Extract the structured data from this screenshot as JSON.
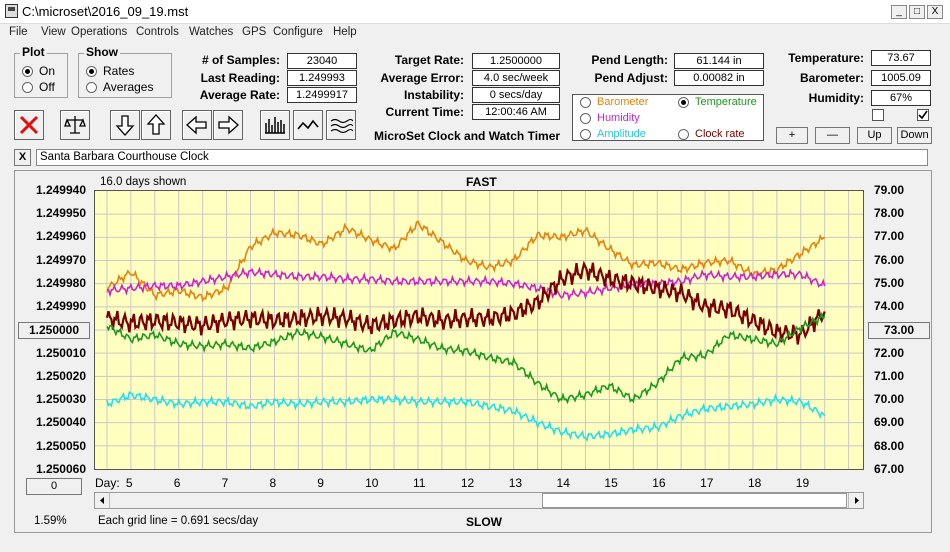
{
  "window": {
    "title": "C:\\microset\\2016_09_19.mst",
    "buttons": [
      "_",
      "□",
      "X"
    ]
  },
  "menu": [
    "File",
    "View",
    "Operations",
    "Controls",
    "Watches",
    "GPS",
    "Configure",
    "Help"
  ],
  "plot_group": {
    "title": "Plot",
    "options": [
      {
        "label": "On",
        "selected": true
      },
      {
        "label": "Off",
        "selected": false
      }
    ]
  },
  "show_group": {
    "title": "Show",
    "options": [
      {
        "label": "Rates",
        "selected": true
      },
      {
        "label": "Averages",
        "selected": false
      }
    ]
  },
  "stats": {
    "samples_label": "# of Samples:",
    "samples": "23040",
    "last_label": "Last Reading:",
    "last": "1.249993",
    "avg_label": "Average Rate:",
    "avg": "1.2499917"
  },
  "rates": {
    "target_label": "Target Rate:",
    "target": "1.2500000",
    "err_label": "Average Error:",
    "err": "4.0 sec/week",
    "inst_label": "Instability:",
    "inst": "0 secs/day",
    "time_label": "Current Time:",
    "time": "12:00:46 AM"
  },
  "app_caption": "MicroSet Clock and Watch Timer",
  "pend": {
    "len_label": "Pend Length:",
    "len": "61.144 in",
    "adj_label": "Pend Adjust:",
    "adj": "0.00082 in"
  },
  "env": {
    "temp_label": "Temperature:",
    "temp": "73.67",
    "baro_label": "Barometer:",
    "baro": "1005.09",
    "hum_label": "Humidity:",
    "hum": "67%"
  },
  "legend": [
    {
      "label": "Barometer",
      "color": "#e8820a",
      "selected": false
    },
    {
      "label": "Temperature",
      "color": "#1a9a1a",
      "selected": true
    },
    {
      "label": "Humidity",
      "color": "#d020d0",
      "selected": false
    },
    {
      "label": "Clock rate",
      "color": "#7a0000",
      "selected": false
    },
    {
      "label": "Amplitude",
      "color": "#20d0e0",
      "selected": false
    }
  ],
  "scale_buttons": [
    "+",
    "—",
    "Up",
    "Down"
  ],
  "clock_name": "Santa Barbara Courthouse Clock",
  "close_glyph": "X",
  "chart_header": {
    "days_shown": "16.0 days shown",
    "fast": "FAST",
    "slow": "SLOW"
  },
  "chart_footer": {
    "left_button": "0",
    "percent": "1.59%",
    "grid_note": "Each grid line = 0.691 secs/day",
    "day_label": "Day:"
  },
  "chart_data": {
    "type": "line",
    "title": "",
    "x": [
      4.5,
      5,
      5.5,
      6,
      6.5,
      7,
      7.5,
      8,
      8.5,
      9,
      9.5,
      10,
      10.5,
      11,
      11.5,
      12,
      12.5,
      13,
      13.5,
      14,
      14.5,
      15,
      15.5,
      16,
      16.5,
      17,
      17.5,
      18,
      18.5,
      19,
      19.5
    ],
    "x_ticks": [
      "5",
      "6",
      "7",
      "8",
      "9",
      "10",
      "11",
      "12",
      "13",
      "14",
      "15",
      "16",
      "17",
      "18",
      "19"
    ],
    "xlim": [
      4.25,
      20.3
    ],
    "left_axis": {
      "ticks": [
        "1.249940",
        "1.249950",
        "1.249960",
        "1.249970",
        "1.249980",
        "1.249990",
        "1.250000",
        "1.250010",
        "1.250020",
        "1.250030",
        "1.250040",
        "1.250050",
        "1.250060"
      ],
      "highlighted": "1.250000"
    },
    "right_axis": {
      "ticks": [
        "79.00",
        "78.00",
        "77.00",
        "76.00",
        "75.00",
        "74.00",
        "73.00",
        "72.00",
        "71.00",
        "70.00",
        "69.00",
        "68.00",
        "67.00"
      ],
      "highlighted": "73.00",
      "ylim": [
        67,
        79
      ]
    },
    "series": [
      {
        "color": "#e8820a",
        "values": [
          74.8,
          75.5,
          74.5,
          74.7,
          74.4,
          74.8,
          76.6,
          77.2,
          77.1,
          76.7,
          77.4,
          76.9,
          76.5,
          77.6,
          76.8,
          76.0,
          75.7,
          76.0,
          77.1,
          77.0,
          77.3,
          76.5,
          75.8,
          75.9,
          75.6,
          75.9,
          76.0,
          75.4,
          75.6,
          76.3,
          77.0
        ]
      },
      {
        "color": "#d020d0",
        "values": [
          74.7,
          74.8,
          74.9,
          74.9,
          75.1,
          75.3,
          75.5,
          75.4,
          75.3,
          75.3,
          75.2,
          75.2,
          75.1,
          75.1,
          75.1,
          75.1,
          75.1,
          75.0,
          74.8,
          74.5,
          74.6,
          74.8,
          75.0,
          75.0,
          75.1,
          75.4,
          75.3,
          75.3,
          75.4,
          75.4,
          74.9
        ]
      },
      {
        "color": "#7a0000",
        "values": [
          73.5,
          73.3,
          73.4,
          73.3,
          73.2,
          73.4,
          73.5,
          73.4,
          73.5,
          73.6,
          73.5,
          73.2,
          73.4,
          73.6,
          73.4,
          73.5,
          73.5,
          73.7,
          74.2,
          75.2,
          75.6,
          75.2,
          75.0,
          74.8,
          74.6,
          74.0,
          73.9,
          73.4,
          72.9,
          72.8,
          73.8
        ]
      },
      {
        "color": "#1a9a1a",
        "values": [
          73.2,
          72.6,
          72.8,
          72.4,
          72.3,
          72.4,
          72.2,
          72.5,
          72.9,
          72.7,
          72.4,
          72.1,
          72.9,
          72.6,
          72.2,
          72.1,
          71.8,
          71.6,
          70.7,
          70.0,
          70.2,
          70.6,
          70.0,
          70.7,
          71.8,
          71.9,
          72.8,
          72.6,
          72.4,
          73.1,
          73.6
        ]
      },
      {
        "color": "#20e0f0",
        "values": [
          69.8,
          70.2,
          70.0,
          69.8,
          69.9,
          69.9,
          69.7,
          69.9,
          69.8,
          69.9,
          69.9,
          70.0,
          70.0,
          69.9,
          69.9,
          69.9,
          69.7,
          69.5,
          69.0,
          68.6,
          68.4,
          68.5,
          68.7,
          68.8,
          69.3,
          69.6,
          69.7,
          69.8,
          70.0,
          69.9,
          69.3
        ]
      }
    ]
  }
}
